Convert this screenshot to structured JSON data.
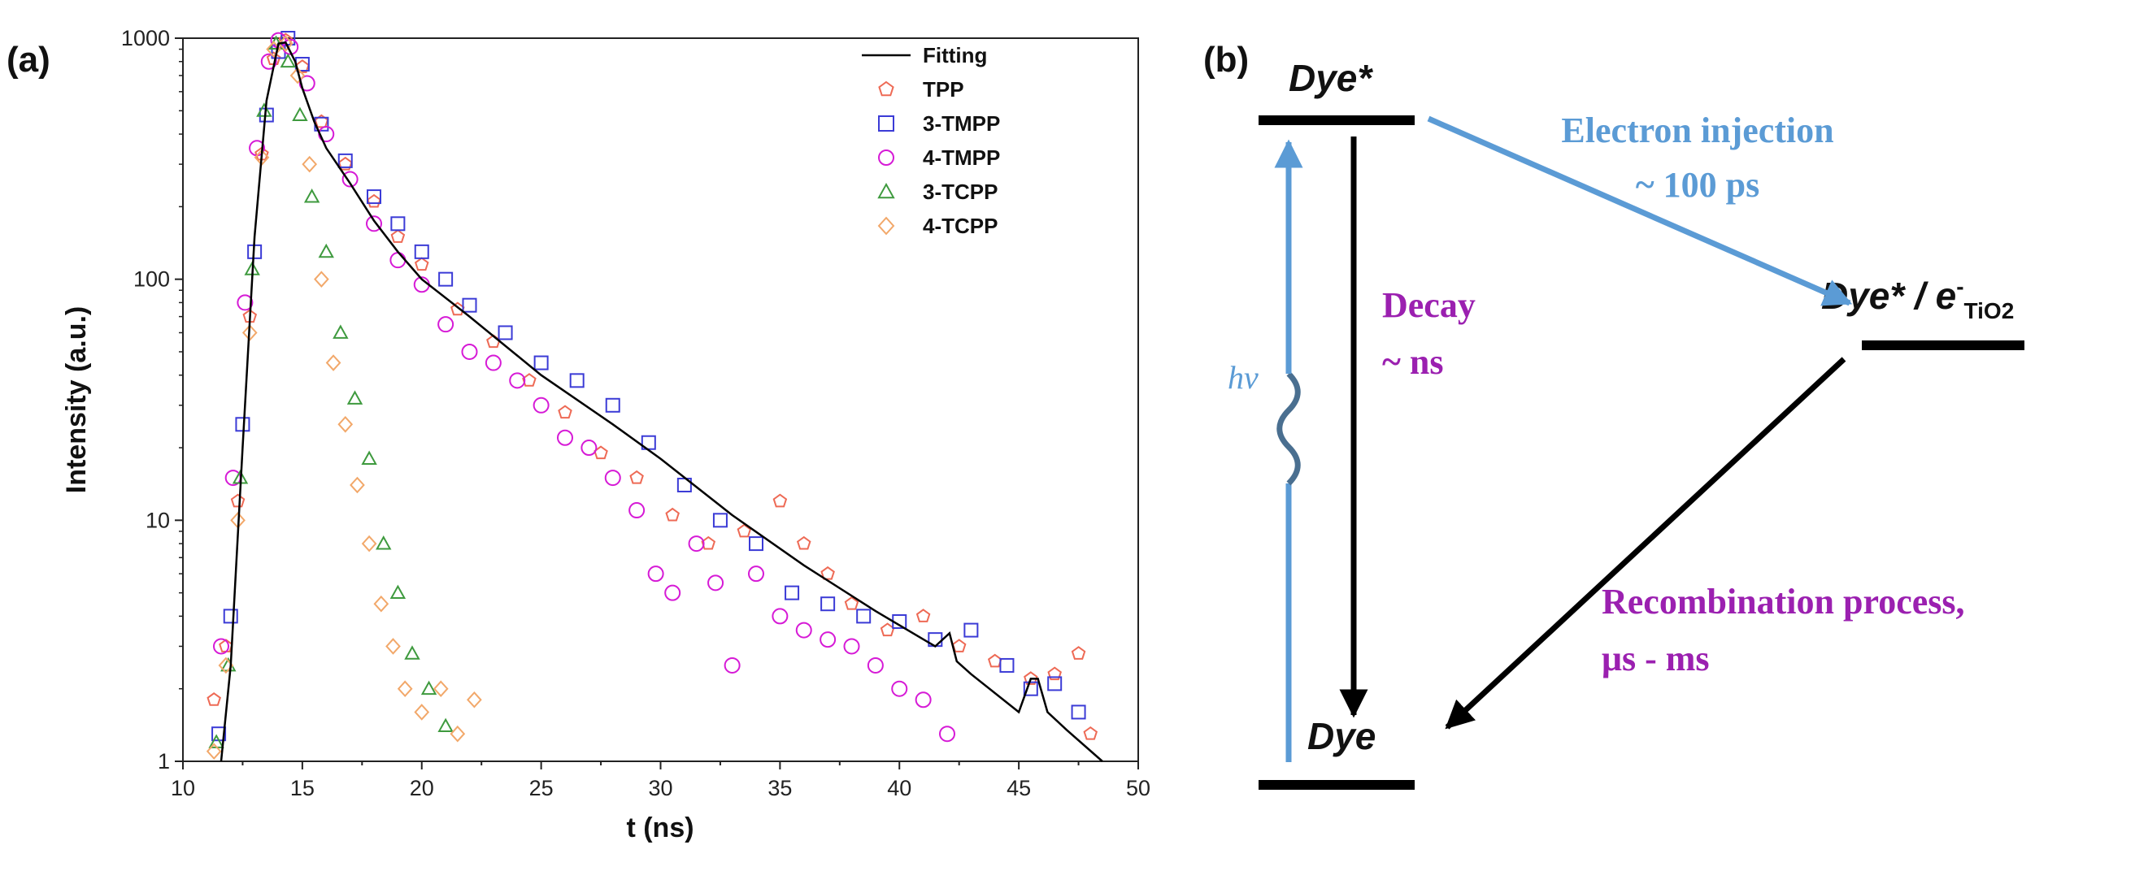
{
  "panel_a": {
    "label": "(a)"
  },
  "panel_b": {
    "label": "(b)",
    "levels": {
      "excited": "Dye*",
      "ground": "Dye",
      "injected_main": "Dye* / e",
      "injected_sup": "-",
      "injected_sub": "TiO2"
    },
    "processes": {
      "excitation": "hν",
      "injection_line1": "Electron injection",
      "injection_line2": "~ 100 ps",
      "decay_line1": "Decay",
      "decay_line2": "~ ns",
      "recombination_line1": "Recombination process,",
      "recombination_line2": "μs - ms"
    },
    "colors": {
      "injection": "#5b9bd5",
      "excitation": "#5b9bd5",
      "decay_text": "#9b20b0",
      "recombination_text": "#9b20b0",
      "arrows_dark": "#000000"
    }
  },
  "chart_data": {
    "type": "scatter",
    "title": "",
    "xlabel": "t (ns)",
    "ylabel": "Intensity (a.u.)",
    "xlim": [
      10,
      50
    ],
    "ylim": [
      1,
      1000
    ],
    "yscale": "log",
    "x_ticks": [
      "10",
      "15",
      "20",
      "25",
      "30",
      "35",
      "40",
      "45",
      "50"
    ],
    "y_ticks": [
      "1",
      "10",
      "100",
      "1000"
    ],
    "legend_position": "top-right",
    "series": [
      {
        "name": "Fitting",
        "marker": "line",
        "color": "#000000",
        "x": [
          11.6,
          12.0,
          12.5,
          13.0,
          13.5,
          14.0,
          14.3,
          14.7,
          15.0,
          15.5,
          16.0,
          17.0,
          18.0,
          19.0,
          20.0,
          22.0,
          25.0,
          28.0,
          30.0,
          33.0,
          36.0,
          39.0,
          41.5,
          42.1,
          42.4,
          43.0,
          45.0,
          45.5,
          45.8,
          46.2,
          47.0,
          48.5
        ],
        "y": [
          1,
          2.5,
          20,
          150,
          550,
          950,
          960,
          800,
          620,
          450,
          350,
          250,
          175,
          130,
          100,
          70,
          40,
          25,
          18,
          10.5,
          6.5,
          4.2,
          3.0,
          3.4,
          2.6,
          2.3,
          1.6,
          2.2,
          2.2,
          1.6,
          1.35,
          1.0
        ]
      },
      {
        "name": "TPP",
        "marker": "pentagon",
        "color": "#ee6a55",
        "x": [
          11.3,
          11.8,
          12.3,
          12.8,
          13.3,
          13.8,
          14.3,
          15.0,
          15.8,
          16.8,
          18.0,
          19.0,
          20.0,
          21.5,
          23.0,
          24.5,
          26.0,
          27.5,
          29.0,
          30.5,
          32.0,
          33.5,
          35.0,
          36.0,
          37.0,
          38.0,
          39.5,
          41.0,
          42.5,
          44.0,
          45.5,
          46.5,
          47.5,
          48.0
        ],
        "y": [
          1.8,
          3,
          12,
          70,
          330,
          820,
          980,
          760,
          450,
          300,
          210,
          150,
          115,
          75,
          55,
          38,
          28,
          19,
          15,
          10.5,
          8,
          9,
          12,
          8,
          6,
          4.5,
          3.5,
          4,
          3,
          2.6,
          2.2,
          2.3,
          2.8,
          1.3
        ]
      },
      {
        "name": "3-TMPP",
        "marker": "square",
        "color": "#3b3bd6",
        "x": [
          11.5,
          12.0,
          12.5,
          13.0,
          13.5,
          14.0,
          14.4,
          15.0,
          15.8,
          16.8,
          18.0,
          19.0,
          20.0,
          21.0,
          22.0,
          23.5,
          25.0,
          26.5,
          28.0,
          29.5,
          31.0,
          32.5,
          34.0,
          35.5,
          37.0,
          38.5,
          40.0,
          41.5,
          43.0,
          44.5,
          45.5,
          46.5,
          47.5
        ],
        "y": [
          1.3,
          4,
          25,
          130,
          480,
          880,
          1000,
          780,
          440,
          310,
          220,
          170,
          130,
          100,
          78,
          60,
          45,
          38,
          30,
          21,
          14,
          10,
          8,
          5,
          4.5,
          4,
          3.8,
          3.2,
          3.5,
          2.5,
          2.0,
          2.1,
          1.6
        ]
      },
      {
        "name": "4-TMPP",
        "marker": "circle",
        "color": "#d61ad6",
        "x": [
          11.6,
          12.1,
          12.6,
          13.1,
          13.6,
          14.0,
          14.5,
          15.2,
          16.0,
          17.0,
          18.0,
          19.0,
          20.0,
          21.0,
          22.0,
          23.0,
          24.0,
          25.0,
          26.0,
          27.0,
          28.0,
          29.0,
          29.8,
          30.5,
          31.5,
          32.3,
          33.0,
          34.0,
          35.0,
          36.0,
          37.0,
          38.0,
          39.0,
          40.0,
          41.0,
          42.0
        ],
        "y": [
          3,
          15,
          80,
          350,
          800,
          980,
          920,
          650,
          400,
          260,
          170,
          120,
          95,
          65,
          50,
          45,
          38,
          30,
          22,
          20,
          15,
          11,
          6,
          5,
          8,
          5.5,
          2.5,
          6,
          4,
          3.5,
          3.2,
          3.0,
          2.5,
          2.0,
          1.8,
          1.3
        ]
      },
      {
        "name": "3-TCPP",
        "marker": "triangle",
        "color": "#3e9a3e",
        "x": [
          11.4,
          11.9,
          12.4,
          12.9,
          13.4,
          13.9,
          14.4,
          14.9,
          15.4,
          16.0,
          16.6,
          17.2,
          17.8,
          18.4,
          19.0,
          19.6,
          20.3,
          21.0
        ],
        "y": [
          1.2,
          2.5,
          15,
          110,
          500,
          950,
          800,
          480,
          220,
          130,
          60,
          32,
          18,
          8,
          5,
          2.8,
          2.0,
          1.4
        ]
      },
      {
        "name": "4-TCPP",
        "marker": "diamond",
        "color": "#f2a86a",
        "x": [
          11.3,
          11.8,
          12.3,
          12.8,
          13.3,
          13.8,
          14.3,
          14.8,
          15.3,
          15.8,
          16.3,
          16.8,
          17.3,
          17.8,
          18.3,
          18.8,
          19.3,
          20.0,
          20.8,
          21.5,
          22.2
        ],
        "y": [
          1.1,
          2.5,
          10,
          60,
          320,
          900,
          950,
          700,
          300,
          100,
          45,
          25,
          14,
          8,
          4.5,
          3,
          2,
          1.6,
          2.0,
          1.3,
          1.8
        ]
      }
    ]
  }
}
